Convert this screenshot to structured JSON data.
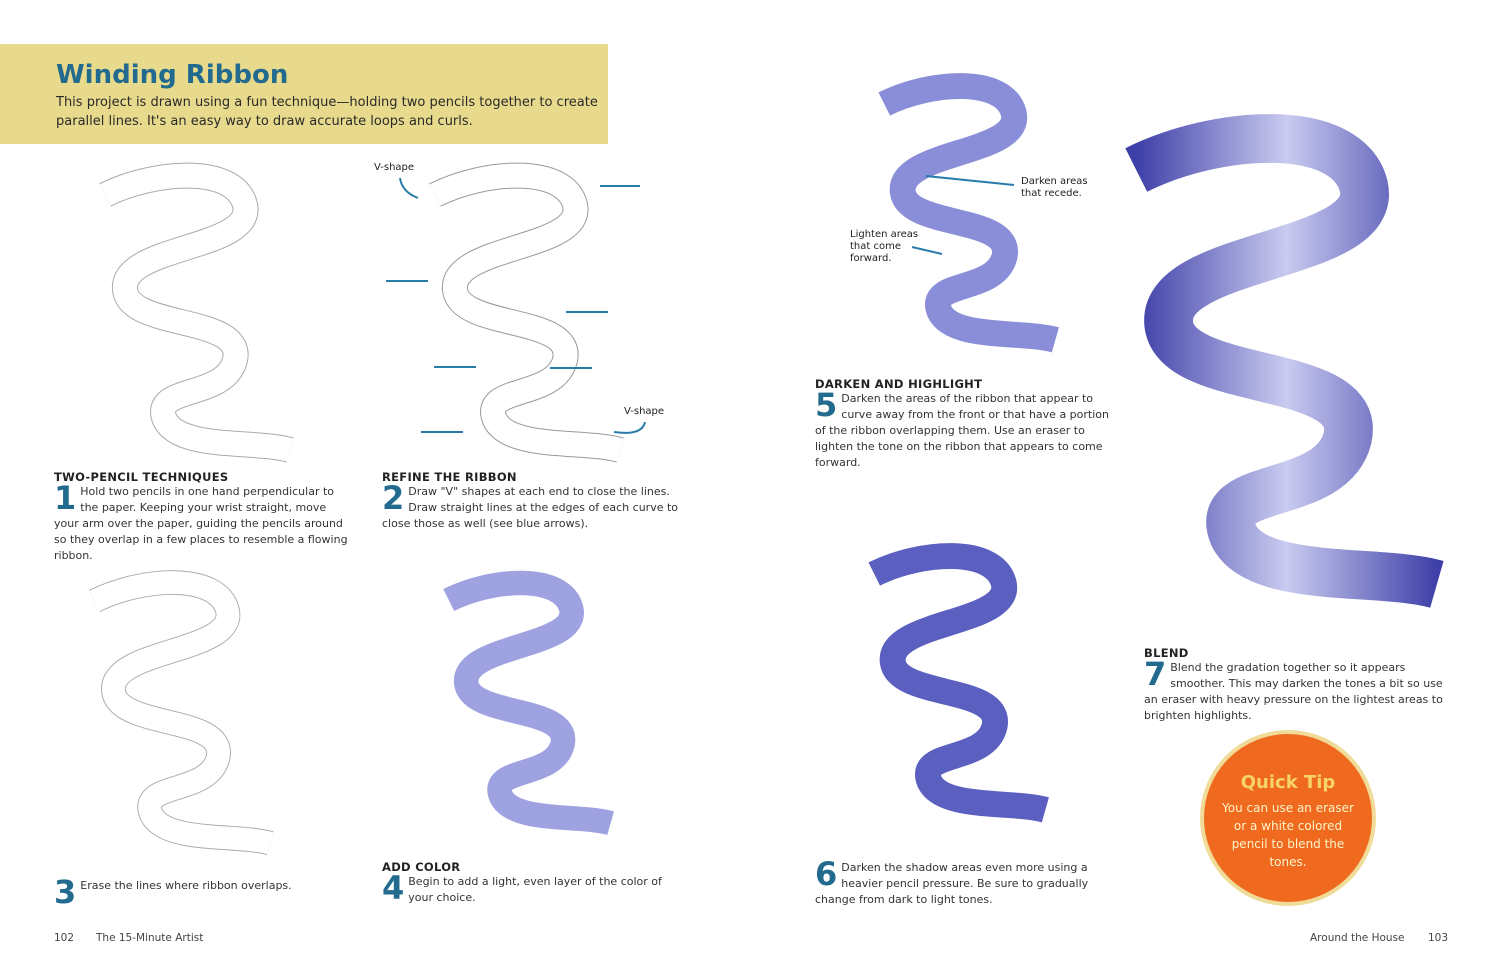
{
  "header": {
    "title": "Winding Ribbon",
    "intro": "This project is drawn using a fun technique—holding two pencils together to create parallel lines. It's an easy way to draw accurate loops and curls."
  },
  "steps": [
    {
      "heading": "TWO-PENCIL TECHNIQUES",
      "number": "1",
      "text": "Hold two pencils in one hand perpendicular to the paper. Keeping your wrist straight, move your arm over the paper, guiding the pencils around so they overlap in a few places to resemble a flowing ribbon."
    },
    {
      "heading": "REFINE THE RIBBON",
      "number": "2",
      "text": "Draw \"V\" shapes at each end to close the lines. Draw straight lines at the edges of each curve to close those as well (see blue arrows)."
    },
    {
      "heading": "",
      "number": "3",
      "text": "Erase the lines where ribbon overlaps."
    },
    {
      "heading": "ADD COLOR",
      "number": "4",
      "text": "Begin to add a light, even layer of the color of your choice."
    },
    {
      "heading": "DARKEN AND HIGHLIGHT",
      "number": "5",
      "text": "Darken the areas of the ribbon that appear to curve away from the front or that have a portion of the ribbon overlapping them. Use an eraser to lighten the tone on the ribbon that appears to come forward."
    },
    {
      "heading": "",
      "number": "6",
      "text": "Darken the shadow areas even more using a heavier pencil pressure. Be sure to gradually change from dark to light tones."
    },
    {
      "heading": "BLEND",
      "number": "7",
      "text": "Blend the gradation together so it appears smoother. This may darken the tones a bit so use an eraser with heavy pressure on the lightest areas to brighten highlights."
    }
  ],
  "annotations": {
    "vshape_top": "V-shape",
    "vshape_bottom": "V-shape",
    "darken": "Darken areas that recede.",
    "lighten": "Lighten areas that come forward."
  },
  "quick_tip": {
    "title": "Quick Tip",
    "body": "You can use an eraser or a white colored pencil to blend the tones."
  },
  "footer": {
    "left_page": "102",
    "left_title": "The 15-Minute Artist",
    "right_title": "Around the House",
    "right_page": "103"
  },
  "colors": {
    "banner": "#e8da8c",
    "accent": "#236b8e",
    "tip": "#ef6a1f",
    "ribbon": "#5a5fc0"
  }
}
